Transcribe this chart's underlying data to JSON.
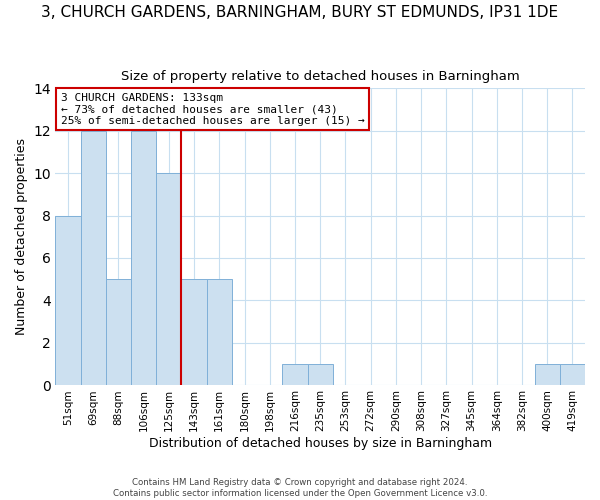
{
  "title": "3, CHURCH GARDENS, BARNINGHAM, BURY ST EDMUNDS, IP31 1DE",
  "subtitle": "Size of property relative to detached houses in Barningham",
  "xlabel": "Distribution of detached houses by size in Barningham",
  "ylabel": "Number of detached properties",
  "bin_labels": [
    "51sqm",
    "69sqm",
    "88sqm",
    "106sqm",
    "125sqm",
    "143sqm",
    "161sqm",
    "180sqm",
    "198sqm",
    "216sqm",
    "235sqm",
    "253sqm",
    "272sqm",
    "290sqm",
    "308sqm",
    "327sqm",
    "345sqm",
    "364sqm",
    "382sqm",
    "400sqm",
    "419sqm"
  ],
  "bar_values": [
    8,
    12,
    5,
    12,
    10,
    5,
    5,
    0,
    0,
    1,
    1,
    0,
    0,
    0,
    0,
    0,
    0,
    0,
    0,
    1,
    1
  ],
  "bar_color": "#cce0f0",
  "bar_edge_color": "#7fb0d8",
  "reference_line_x": 4.5,
  "reference_line_label": "3 CHURCH GARDENS: 133sqm",
  "annotation_line1": "← 73% of detached houses are smaller (43)",
  "annotation_line2": "25% of semi-detached houses are larger (15) →",
  "annotation_box_color": "#ffffff",
  "annotation_box_edge": "#cc0000",
  "ref_line_color": "#cc0000",
  "ylim": [
    0,
    14
  ],
  "footer1": "Contains HM Land Registry data © Crown copyright and database right 2024.",
  "footer2": "Contains public sector information licensed under the Open Government Licence v3.0.",
  "title_fontsize": 11,
  "subtitle_fontsize": 9.5,
  "axis_label_fontsize": 9,
  "tick_fontsize": 7.5,
  "background_color": "#ffffff",
  "grid_color": "#c8dff0"
}
